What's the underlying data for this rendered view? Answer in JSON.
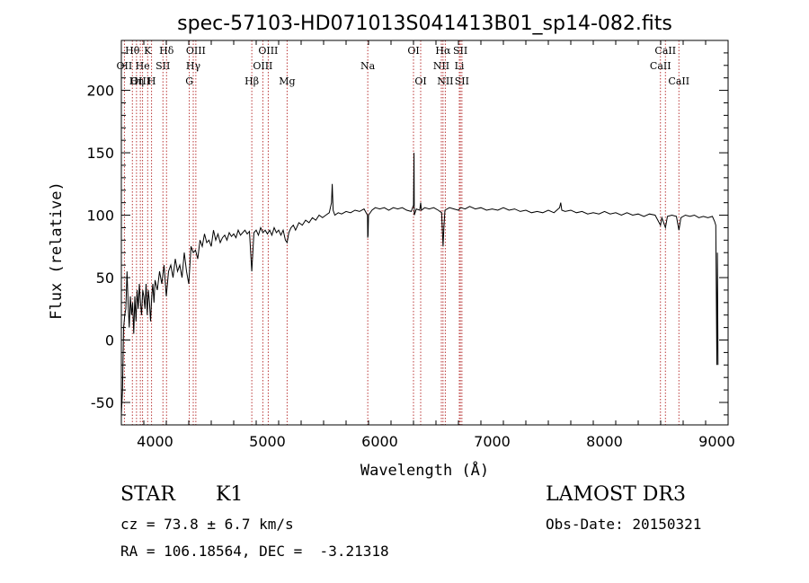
{
  "chart_data": {
    "type": "line",
    "title": "spec-57103-HD071013S041413B01_sp14-082.fits",
    "xlabel": "Wavelength (Å)",
    "ylabel": "Flux (relative)",
    "xlim": [
      3700,
      9100
    ],
    "ylim": [
      -68,
      240
    ],
    "x_ticks": [
      4000,
      5000,
      6000,
      7000,
      8000,
      9000
    ],
    "y_ticks": [
      -50,
      0,
      50,
      100,
      150,
      200
    ],
    "series": [
      {
        "name": "flux",
        "points": [
          [
            3700,
            -60
          ],
          [
            3710,
            -40
          ],
          [
            3720,
            10
          ],
          [
            3730,
            20
          ],
          [
            3740,
            25
          ],
          [
            3750,
            55
          ],
          [
            3760,
            30
          ],
          [
            3770,
            10
          ],
          [
            3780,
            35
          ],
          [
            3790,
            20
          ],
          [
            3800,
            30
          ],
          [
            3810,
            5
          ],
          [
            3820,
            35
          ],
          [
            3830,
            15
          ],
          [
            3840,
            40
          ],
          [
            3850,
            25
          ],
          [
            3860,
            45
          ],
          [
            3870,
            30
          ],
          [
            3880,
            20
          ],
          [
            3890,
            40
          ],
          [
            3900,
            35
          ],
          [
            3910,
            25
          ],
          [
            3920,
            45
          ],
          [
            3930,
            20
          ],
          [
            3940,
            40
          ],
          [
            3950,
            30
          ],
          [
            3960,
            15
          ],
          [
            3970,
            35
          ],
          [
            3980,
            45
          ],
          [
            3990,
            30
          ],
          [
            4000,
            48
          ],
          [
            4020,
            40
          ],
          [
            4040,
            55
          ],
          [
            4060,
            45
          ],
          [
            4080,
            60
          ],
          [
            4100,
            35
          ],
          [
            4120,
            55
          ],
          [
            4140,
            60
          ],
          [
            4160,
            50
          ],
          [
            4180,
            65
          ],
          [
            4200,
            55
          ],
          [
            4220,
            60
          ],
          [
            4240,
            50
          ],
          [
            4260,
            70
          ],
          [
            4280,
            55
          ],
          [
            4300,
            45
          ],
          [
            4320,
            75
          ],
          [
            4340,
            70
          ],
          [
            4360,
            72
          ],
          [
            4380,
            65
          ],
          [
            4400,
            80
          ],
          [
            4420,
            75
          ],
          [
            4440,
            85
          ],
          [
            4460,
            78
          ],
          [
            4480,
            80
          ],
          [
            4500,
            75
          ],
          [
            4520,
            88
          ],
          [
            4540,
            80
          ],
          [
            4560,
            85
          ],
          [
            4580,
            78
          ],
          [
            4600,
            82
          ],
          [
            4620,
            84
          ],
          [
            4640,
            80
          ],
          [
            4660,
            86
          ],
          [
            4680,
            83
          ],
          [
            4700,
            85
          ],
          [
            4720,
            82
          ],
          [
            4740,
            88
          ],
          [
            4760,
            84
          ],
          [
            4780,
            86
          ],
          [
            4800,
            88
          ],
          [
            4820,
            85
          ],
          [
            4840,
            87
          ],
          [
            4861,
            55
          ],
          [
            4880,
            86
          ],
          [
            4900,
            88
          ],
          [
            4920,
            84
          ],
          [
            4940,
            90
          ],
          [
            4960,
            86
          ],
          [
            4980,
            88
          ],
          [
            5000,
            85
          ],
          [
            5020,
            88
          ],
          [
            5040,
            84
          ],
          [
            5060,
            90
          ],
          [
            5080,
            86
          ],
          [
            5100,
            88
          ],
          [
            5120,
            84
          ],
          [
            5140,
            88
          ],
          [
            5160,
            80
          ],
          [
            5175,
            78
          ],
          [
            5190,
            86
          ],
          [
            5210,
            90
          ],
          [
            5230,
            92
          ],
          [
            5250,
            88
          ],
          [
            5280,
            94
          ],
          [
            5310,
            92
          ],
          [
            5340,
            96
          ],
          [
            5370,
            94
          ],
          [
            5400,
            98
          ],
          [
            5430,
            96
          ],
          [
            5460,
            100
          ],
          [
            5490,
            98
          ],
          [
            5520,
            100
          ],
          [
            5550,
            102
          ],
          [
            5570,
            110
          ],
          [
            5577,
            125
          ],
          [
            5585,
            104
          ],
          [
            5600,
            100
          ],
          [
            5630,
            102
          ],
          [
            5660,
            101
          ],
          [
            5700,
            103
          ],
          [
            5740,
            102
          ],
          [
            5780,
            104
          ],
          [
            5820,
            103
          ],
          [
            5860,
            105
          ],
          [
            5890,
            100
          ],
          [
            5893,
            82
          ],
          [
            5896,
            84
          ],
          [
            5900,
            100
          ],
          [
            5930,
            104
          ],
          [
            5960,
            106
          ],
          [
            6000,
            105
          ],
          [
            6040,
            106
          ],
          [
            6080,
            104
          ],
          [
            6120,
            106
          ],
          [
            6160,
            105
          ],
          [
            6200,
            106
          ],
          [
            6240,
            104
          ],
          [
            6280,
            103
          ],
          [
            6300,
            108
          ],
          [
            6305,
            150
          ],
          [
            6307,
            100
          ],
          [
            6325,
            105
          ],
          [
            6355,
            104
          ],
          [
            6364,
            110
          ],
          [
            6370,
            104
          ],
          [
            6400,
            106
          ],
          [
            6440,
            105
          ],
          [
            6480,
            106
          ],
          [
            6520,
            104
          ],
          [
            6550,
            102
          ],
          [
            6563,
            75
          ],
          [
            6570,
            90
          ],
          [
            6580,
            104
          ],
          [
            6620,
            106
          ],
          [
            6660,
            105
          ],
          [
            6700,
            104
          ],
          [
            6720,
            106
          ],
          [
            6760,
            105
          ],
          [
            6800,
            107
          ],
          [
            6850,
            105
          ],
          [
            6900,
            106
          ],
          [
            6950,
            104
          ],
          [
            7000,
            105
          ],
          [
            7050,
            104
          ],
          [
            7100,
            106
          ],
          [
            7150,
            104
          ],
          [
            7200,
            105
          ],
          [
            7250,
            103
          ],
          [
            7300,
            104
          ],
          [
            7350,
            102
          ],
          [
            7400,
            103
          ],
          [
            7450,
            102
          ],
          [
            7500,
            104
          ],
          [
            7550,
            102
          ],
          [
            7600,
            106
          ],
          [
            7610,
            110
          ],
          [
            7620,
            104
          ],
          [
            7650,
            103
          ],
          [
            7700,
            104
          ],
          [
            7750,
            102
          ],
          [
            7800,
            103
          ],
          [
            7850,
            101
          ],
          [
            7900,
            102
          ],
          [
            7950,
            101
          ],
          [
            8000,
            103
          ],
          [
            8050,
            101
          ],
          [
            8100,
            102
          ],
          [
            8150,
            100
          ],
          [
            8200,
            102
          ],
          [
            8250,
            100
          ],
          [
            8300,
            101
          ],
          [
            8350,
            99
          ],
          [
            8400,
            101
          ],
          [
            8450,
            100
          ],
          [
            8498,
            92
          ],
          [
            8510,
            98
          ],
          [
            8542,
            90
          ],
          [
            8560,
            99
          ],
          [
            8600,
            100
          ],
          [
            8640,
            99
          ],
          [
            8662,
            88
          ],
          [
            8680,
            98
          ],
          [
            8720,
            100
          ],
          [
            8760,
            99
          ],
          [
            8800,
            100
          ],
          [
            8840,
            98
          ],
          [
            8880,
            99
          ],
          [
            8920,
            98
          ],
          [
            8960,
            99
          ],
          [
            8980,
            95
          ],
          [
            8990,
            92
          ],
          [
            9000,
            -20
          ],
          [
            9005,
            70
          ],
          [
            9010,
            -20
          ]
        ]
      }
    ],
    "line_markers": [
      {
        "label": "Hθ",
        "wavelength": 3798,
        "row": 0
      },
      {
        "label": "OII",
        "wavelength": 3727,
        "row": 1
      },
      {
        "label": "OIII",
        "wavelength": 3869,
        "row": 2
      },
      {
        "label": "K",
        "wavelength": 3934,
        "row": 0
      },
      {
        "label": "He",
        "wavelength": 3889,
        "row": 1
      },
      {
        "label": "Hη",
        "wavelength": 3835,
        "row": 2
      },
      {
        "label": "SII",
        "wavelength": 4070,
        "row": 1
      },
      {
        "label": "Hδ",
        "wavelength": 4102,
        "row": 0
      },
      {
        "label": "H",
        "wavelength": 3969,
        "row": 2
      },
      {
        "label": "OIII",
        "wavelength": 4363,
        "row": 0
      },
      {
        "label": "Hγ",
        "wavelength": 4340,
        "row": 1
      },
      {
        "label": "G",
        "wavelength": 4305,
        "row": 2
      },
      {
        "label": "OIII",
        "wavelength": 5007,
        "row": 0
      },
      {
        "label": "OIII",
        "wavelength": 4959,
        "row": 1
      },
      {
        "label": "Hβ",
        "wavelength": 4861,
        "row": 2
      },
      {
        "label": "Mg",
        "wavelength": 5175,
        "row": 2
      },
      {
        "label": "Na",
        "wavelength": 5893,
        "row": 1
      },
      {
        "label": "OI",
        "wavelength": 6300,
        "row": 0
      },
      {
        "label": "OI",
        "wavelength": 6364,
        "row": 2
      },
      {
        "label": "Hα",
        "wavelength": 6563,
        "row": 0
      },
      {
        "label": "SII",
        "wavelength": 6717,
        "row": 0
      },
      {
        "label": "NII",
        "wavelength": 6548,
        "row": 1
      },
      {
        "label": "Li",
        "wavelength": 6708,
        "row": 1
      },
      {
        "label": "NII",
        "wavelength": 6583,
        "row": 2
      },
      {
        "label": "SII",
        "wavelength": 6731,
        "row": 2
      },
      {
        "label": "CaII",
        "wavelength": 8542,
        "row": 0
      },
      {
        "label": "CaII",
        "wavelength": 8498,
        "row": 1
      },
      {
        "label": "CaII",
        "wavelength": 8662,
        "row": 2
      }
    ],
    "colors": {
      "spectrum": "#000000",
      "markers": "#b22222",
      "axis": "#000000"
    }
  },
  "info": {
    "object_class": "STAR",
    "subclass": "K1",
    "survey": "LAMOST DR3",
    "cz": "cz = 73.8 ± 6.7 km/s",
    "obs_date": "Obs-Date: 20150321",
    "coords": "RA = 106.18564, DEC =  -3.21318"
  }
}
